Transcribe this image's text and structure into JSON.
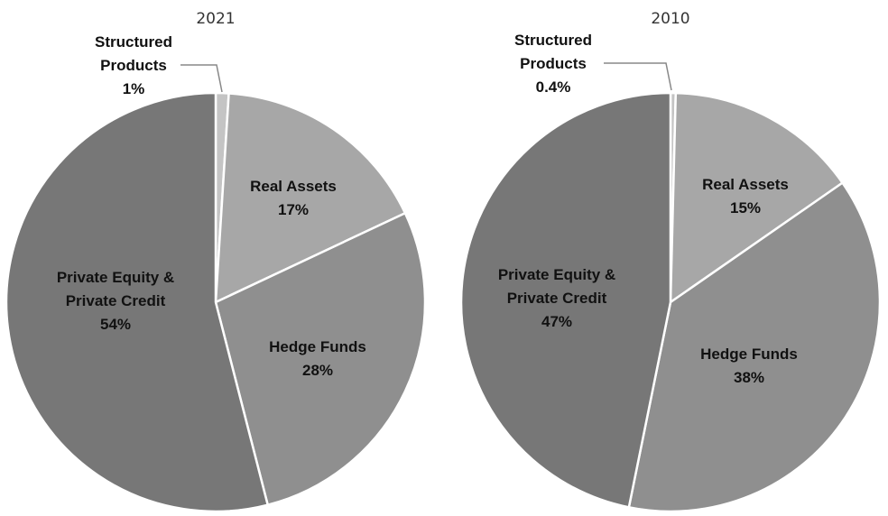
{
  "chart_data": [
    {
      "type": "pie",
      "title": "2021",
      "slices": [
        {
          "label_lines": [
            "Structured",
            "Products"
          ],
          "value_label": "1%",
          "value": 1,
          "color": "#c4c4c4"
        },
        {
          "label_lines": [
            "Real Assets"
          ],
          "value_label": "17%",
          "value": 17,
          "color": "#a7a7a7"
        },
        {
          "label_lines": [
            "Hedge Funds"
          ],
          "value_label": "28%",
          "value": 28,
          "color": "#8f8f8f"
        },
        {
          "label_lines": [
            "Private Equity &",
            "Private Credit"
          ],
          "value_label": "54%",
          "value": 54,
          "color": "#777777"
        }
      ]
    },
    {
      "type": "pie",
      "title": "2010",
      "slices": [
        {
          "label_lines": [
            "Structured",
            "Products"
          ],
          "value_label": "0.4%",
          "value": 0.4,
          "color": "#c4c4c4"
        },
        {
          "label_lines": [
            "Real Assets"
          ],
          "value_label": "15%",
          "value": 15,
          "color": "#a7a7a7"
        },
        {
          "label_lines": [
            "Hedge Funds"
          ],
          "value_label": "38%",
          "value": 38,
          "color": "#8f8f8f"
        },
        {
          "label_lines": [
            "Private Equity &",
            "Private Credit"
          ],
          "value_label": "47%",
          "value": 47,
          "color": "#777777"
        }
      ]
    }
  ]
}
